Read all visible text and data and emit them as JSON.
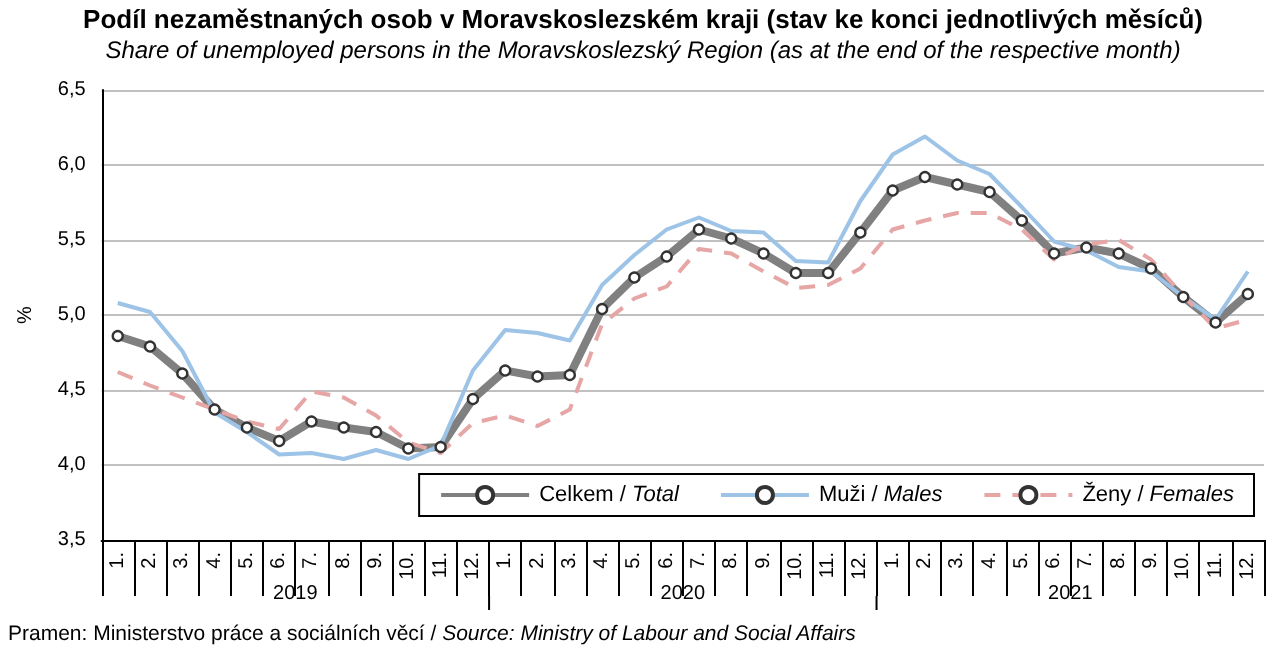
{
  "chart_data": {
    "type": "line",
    "title": "Podíl nezaměstnaných osob  v Moravskoslezském  kraji (stav ke konci jednotlivých měsíců)",
    "subtitle": "Share of unemployed persons  in the Moravskoslezský Region  (as at the end of the respective month)",
    "ylabel": "%",
    "categories": [
      "1.",
      "2.",
      "3.",
      "4.",
      "5.",
      "6.",
      "7.",
      "8.",
      "9.",
      "10.",
      "11.",
      "12.",
      "1.",
      "2.",
      "3.",
      "4.",
      "5.",
      "6.",
      "7.",
      "8.",
      "9.",
      "10.",
      "11.",
      "12.",
      "1.",
      "2.",
      "3.",
      "4.",
      "5.",
      "6.",
      "7.",
      "8.",
      "9.",
      "10.",
      "11.",
      "12."
    ],
    "series": [
      {
        "name": "Celkem / Total",
        "color": "#808080",
        "marker": "circle",
        "line_style": "solid",
        "values": [
          4.86,
          4.79,
          4.61,
          4.37,
          4.25,
          4.16,
          4.29,
          4.25,
          4.22,
          4.11,
          4.12,
          4.44,
          4.63,
          4.59,
          4.6,
          5.04,
          5.25,
          5.39,
          5.57,
          5.51,
          5.41,
          5.28,
          5.28,
          5.55,
          5.83,
          5.92,
          5.87,
          5.82,
          5.63,
          5.41,
          5.45,
          5.41,
          5.31,
          5.12,
          4.95,
          5.14
        ]
      },
      {
        "name": "Muži / Males",
        "color": "#9dc3e6",
        "marker": "none",
        "line_style": "solid",
        "values": [
          5.08,
          5.02,
          4.76,
          4.35,
          4.22,
          4.07,
          4.08,
          4.04,
          4.1,
          4.04,
          4.13,
          4.63,
          4.9,
          4.88,
          4.83,
          5.2,
          5.4,
          5.57,
          5.65,
          5.56,
          5.55,
          5.36,
          5.35,
          5.76,
          6.07,
          6.19,
          6.03,
          5.94,
          5.72,
          5.49,
          5.43,
          5.32,
          5.29,
          5.12,
          4.97,
          5.29
        ]
      },
      {
        "name": "Ženy / Females",
        "color": "#e6a6a6",
        "marker": "none",
        "line_style": "dashed",
        "values": [
          4.62,
          4.53,
          4.45,
          4.37,
          4.29,
          4.24,
          4.49,
          4.45,
          4.33,
          4.15,
          4.08,
          4.28,
          4.33,
          4.26,
          4.37,
          4.94,
          5.11,
          5.19,
          5.44,
          5.41,
          5.29,
          5.18,
          5.2,
          5.31,
          5.57,
          5.63,
          5.68,
          5.68,
          5.57,
          5.37,
          5.47,
          5.5,
          5.37,
          5.13,
          4.91,
          4.97
        ]
      }
    ],
    "ylim": [
      3.5,
      6.5
    ],
    "yticks": [
      {
        "value": 3.5,
        "label": "3,5"
      },
      {
        "value": 4,
        "label": "4,0"
      },
      {
        "value": 4.5,
        "label": "4,5"
      },
      {
        "value": 5,
        "label": "5,0"
      },
      {
        "value": 5.5,
        "label": "5,5"
      },
      {
        "value": 6,
        "label": "6,0"
      },
      {
        "value": 6.5,
        "label": "6,5"
      }
    ],
    "grid": "y",
    "legend": "bottom",
    "annotations": [
      "2019",
      "2020",
      "2021",
      "Pramen: Ministerstvo práce a sociálních věcí / Source: Ministry of Labour and Social Affairs"
    ]
  }
}
